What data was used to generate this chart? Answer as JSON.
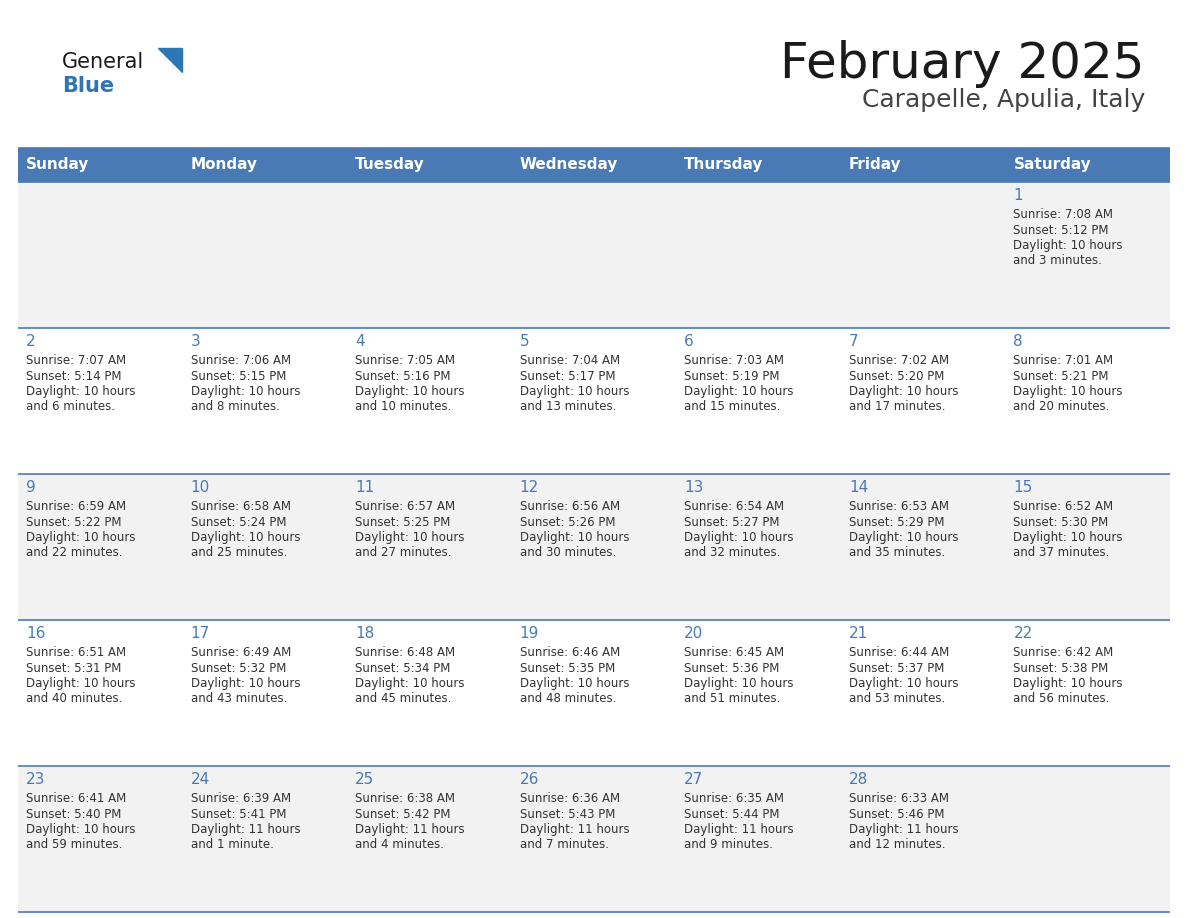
{
  "title": "February 2025",
  "subtitle": "Carapelle, Apulia, Italy",
  "days_of_week": [
    "Sunday",
    "Monday",
    "Tuesday",
    "Wednesday",
    "Thursday",
    "Friday",
    "Saturday"
  ],
  "header_bg": "#4a7ab5",
  "header_text": "#FFFFFF",
  "row0_bg": "#f2f2f2",
  "row1_bg": "#ffffff",
  "row2_bg": "#f2f2f2",
  "row3_bg": "#ffffff",
  "row4_bg": "#f2f2f2",
  "border_color": "#4a7ab5",
  "day_number_color": "#4a7ab5",
  "info_text_color": "#333333",
  "title_color": "#1a1a1a",
  "subtitle_color": "#444444",
  "logo_general_color": "#1a1a1a",
  "logo_blue_color": "#2e75b6",
  "logo_triangle_color": "#2e75b6",
  "calendar_data": [
    [
      null,
      null,
      null,
      null,
      null,
      null,
      {
        "day": 1,
        "sunrise": "7:08 AM",
        "sunset": "5:12 PM",
        "daylight_line1": "Daylight: 10 hours",
        "daylight_line2": "and 3 minutes."
      }
    ],
    [
      {
        "day": 2,
        "sunrise": "7:07 AM",
        "sunset": "5:14 PM",
        "daylight_line1": "Daylight: 10 hours",
        "daylight_line2": "and 6 minutes."
      },
      {
        "day": 3,
        "sunrise": "7:06 AM",
        "sunset": "5:15 PM",
        "daylight_line1": "Daylight: 10 hours",
        "daylight_line2": "and 8 minutes."
      },
      {
        "day": 4,
        "sunrise": "7:05 AM",
        "sunset": "5:16 PM",
        "daylight_line1": "Daylight: 10 hours",
        "daylight_line2": "and 10 minutes."
      },
      {
        "day": 5,
        "sunrise": "7:04 AM",
        "sunset": "5:17 PM",
        "daylight_line1": "Daylight: 10 hours",
        "daylight_line2": "and 13 minutes."
      },
      {
        "day": 6,
        "sunrise": "7:03 AM",
        "sunset": "5:19 PM",
        "daylight_line1": "Daylight: 10 hours",
        "daylight_line2": "and 15 minutes."
      },
      {
        "day": 7,
        "sunrise": "7:02 AM",
        "sunset": "5:20 PM",
        "daylight_line1": "Daylight: 10 hours",
        "daylight_line2": "and 17 minutes."
      },
      {
        "day": 8,
        "sunrise": "7:01 AM",
        "sunset": "5:21 PM",
        "daylight_line1": "Daylight: 10 hours",
        "daylight_line2": "and 20 minutes."
      }
    ],
    [
      {
        "day": 9,
        "sunrise": "6:59 AM",
        "sunset": "5:22 PM",
        "daylight_line1": "Daylight: 10 hours",
        "daylight_line2": "and 22 minutes."
      },
      {
        "day": 10,
        "sunrise": "6:58 AM",
        "sunset": "5:24 PM",
        "daylight_line1": "Daylight: 10 hours",
        "daylight_line2": "and 25 minutes."
      },
      {
        "day": 11,
        "sunrise": "6:57 AM",
        "sunset": "5:25 PM",
        "daylight_line1": "Daylight: 10 hours",
        "daylight_line2": "and 27 minutes."
      },
      {
        "day": 12,
        "sunrise": "6:56 AM",
        "sunset": "5:26 PM",
        "daylight_line1": "Daylight: 10 hours",
        "daylight_line2": "and 30 minutes."
      },
      {
        "day": 13,
        "sunrise": "6:54 AM",
        "sunset": "5:27 PM",
        "daylight_line1": "Daylight: 10 hours",
        "daylight_line2": "and 32 minutes."
      },
      {
        "day": 14,
        "sunrise": "6:53 AM",
        "sunset": "5:29 PM",
        "daylight_line1": "Daylight: 10 hours",
        "daylight_line2": "and 35 minutes."
      },
      {
        "day": 15,
        "sunrise": "6:52 AM",
        "sunset": "5:30 PM",
        "daylight_line1": "Daylight: 10 hours",
        "daylight_line2": "and 37 minutes."
      }
    ],
    [
      {
        "day": 16,
        "sunrise": "6:51 AM",
        "sunset": "5:31 PM",
        "daylight_line1": "Daylight: 10 hours",
        "daylight_line2": "and 40 minutes."
      },
      {
        "day": 17,
        "sunrise": "6:49 AM",
        "sunset": "5:32 PM",
        "daylight_line1": "Daylight: 10 hours",
        "daylight_line2": "and 43 minutes."
      },
      {
        "day": 18,
        "sunrise": "6:48 AM",
        "sunset": "5:34 PM",
        "daylight_line1": "Daylight: 10 hours",
        "daylight_line2": "and 45 minutes."
      },
      {
        "day": 19,
        "sunrise": "6:46 AM",
        "sunset": "5:35 PM",
        "daylight_line1": "Daylight: 10 hours",
        "daylight_line2": "and 48 minutes."
      },
      {
        "day": 20,
        "sunrise": "6:45 AM",
        "sunset": "5:36 PM",
        "daylight_line1": "Daylight: 10 hours",
        "daylight_line2": "and 51 minutes."
      },
      {
        "day": 21,
        "sunrise": "6:44 AM",
        "sunset": "5:37 PM",
        "daylight_line1": "Daylight: 10 hours",
        "daylight_line2": "and 53 minutes."
      },
      {
        "day": 22,
        "sunrise": "6:42 AM",
        "sunset": "5:38 PM",
        "daylight_line1": "Daylight: 10 hours",
        "daylight_line2": "and 56 minutes."
      }
    ],
    [
      {
        "day": 23,
        "sunrise": "6:41 AM",
        "sunset": "5:40 PM",
        "daylight_line1": "Daylight: 10 hours",
        "daylight_line2": "and 59 minutes."
      },
      {
        "day": 24,
        "sunrise": "6:39 AM",
        "sunset": "5:41 PM",
        "daylight_line1": "Daylight: 11 hours",
        "daylight_line2": "and 1 minute."
      },
      {
        "day": 25,
        "sunrise": "6:38 AM",
        "sunset": "5:42 PM",
        "daylight_line1": "Daylight: 11 hours",
        "daylight_line2": "and 4 minutes."
      },
      {
        "day": 26,
        "sunrise": "6:36 AM",
        "sunset": "5:43 PM",
        "daylight_line1": "Daylight: 11 hours",
        "daylight_line2": "and 7 minutes."
      },
      {
        "day": 27,
        "sunrise": "6:35 AM",
        "sunset": "5:44 PM",
        "daylight_line1": "Daylight: 11 hours",
        "daylight_line2": "and 9 minutes."
      },
      {
        "day": 28,
        "sunrise": "6:33 AM",
        "sunset": "5:46 PM",
        "daylight_line1": "Daylight: 11 hours",
        "daylight_line2": "and 12 minutes."
      },
      null
    ]
  ]
}
